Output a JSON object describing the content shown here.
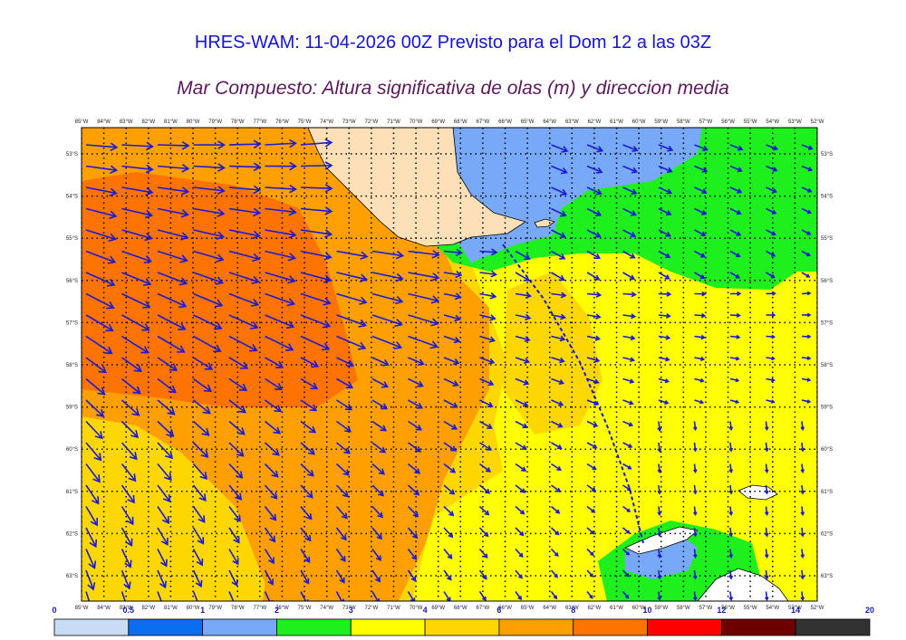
{
  "title": "HRES-WAM: 11-04-2026 00Z Previsto para el Dom 12 a las 03Z",
  "subtitle": "Mar Compuesto: Altura significativa de olas (m) y direccion media",
  "lon_labels": [
    "85°W",
    "84°W",
    "83°W",
    "82°W",
    "81°W",
    "80°W",
    "79°W",
    "78°W",
    "77°W",
    "76°W",
    "75°W",
    "74°W",
    "73°W",
    "72°W",
    "71°W",
    "70°W",
    "69°W",
    "68°W",
    "67°W",
    "66°W",
    "65°W",
    "64°W",
    "63°W",
    "62°W",
    "61°W",
    "60°W",
    "59°W",
    "58°W",
    "57°W",
    "56°W",
    "55°W",
    "54°W",
    "53°W",
    "52°W"
  ],
  "lat_labels": [
    "53°S",
    "54°S",
    "55°S",
    "56°S",
    "57°S",
    "58°S",
    "59°S",
    "60°S",
    "61°S",
    "62°S",
    "63°S"
  ],
  "colorbar": {
    "ticks": [
      "0",
      "0.5",
      "1",
      "2",
      "3",
      "4",
      "6",
      "8",
      "10",
      "12",
      "14",
      "20"
    ],
    "colors": [
      "#c8dcf5",
      "#0a6ef0",
      "#78a8f8",
      "#1ef01e",
      "#ffff00",
      "#ffd700",
      "#ffa000",
      "#ff7300",
      "#ff0000",
      "#6e0000",
      "#323232"
    ]
  },
  "colors": {
    "land": "#fde0b8",
    "arrow": "#1a1ad8",
    "grid": "#000000"
  }
}
